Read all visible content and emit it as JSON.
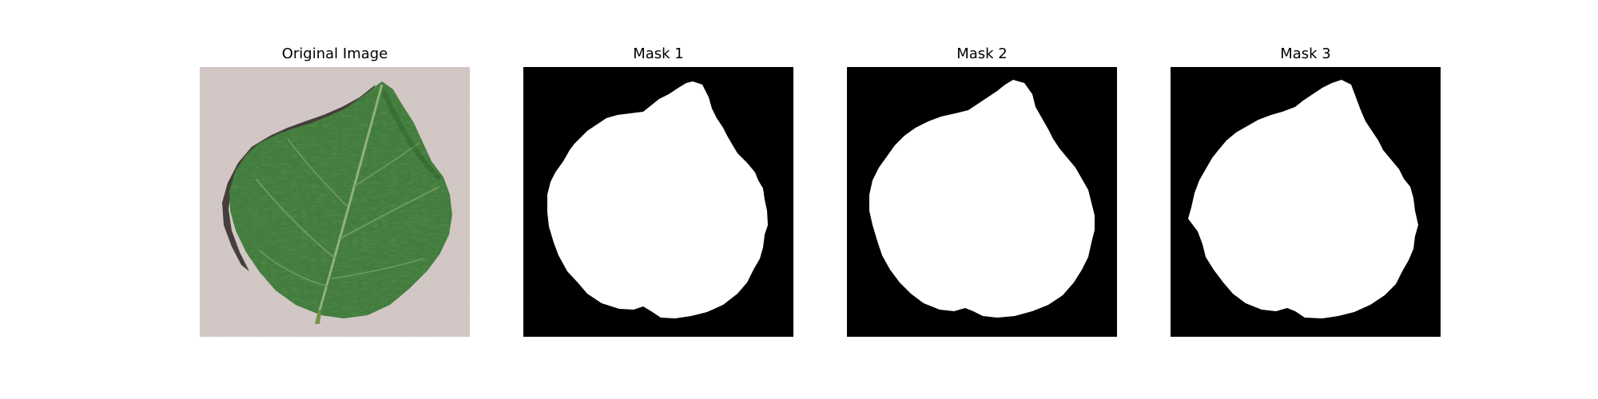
{
  "figure": {
    "panels": [
      {
        "title": "Original Image",
        "kind": "photo",
        "subject": "leaf-photo"
      },
      {
        "title": "Mask 1",
        "kind": "mask",
        "subject": "leaf-mask"
      },
      {
        "title": "Mask 2",
        "kind": "mask",
        "subject": "leaf-mask"
      },
      {
        "title": "Mask 3",
        "kind": "mask",
        "subject": "leaf-mask"
      }
    ],
    "colors": {
      "background_stone": "#cdc2bf",
      "leaf_green": "#3f7a3a",
      "leaf_dark": "#24521f",
      "leaf_shadow": "#2d2622",
      "mask_background": "#000000",
      "mask_foreground": "#ffffff"
    }
  }
}
